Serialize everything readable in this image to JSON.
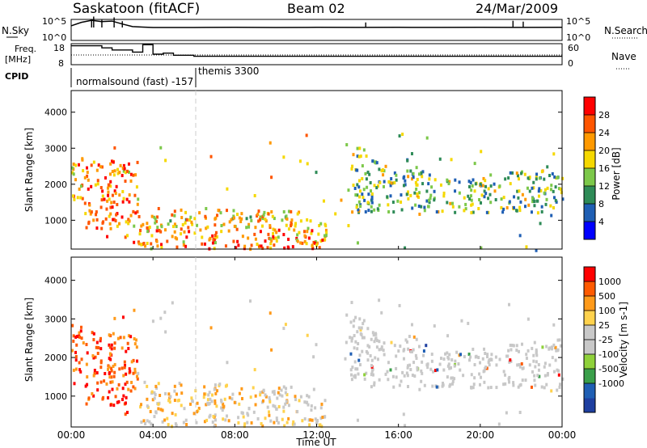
{
  "header": {
    "station": "Saskatoon (fitACF)",
    "beam": "Beam 02",
    "date": "24/Mar/2009"
  },
  "noise_panel": {
    "left_label": "N.Sky",
    "right_label": "N.Search",
    "tick_top": "10^5",
    "tick_bottom": "10^0",
    "log_scale": true
  },
  "freq_panel": {
    "left_label_1": "Freq.",
    "left_label_2": "[MHz]",
    "left_tick_top": "18",
    "left_tick_bottom": "8",
    "right_label": "Nave",
    "right_tick_top": "60",
    "right_tick_bottom": "0"
  },
  "cpid": {
    "label": "CPID",
    "mode_1": "normalsound (fast)",
    "mode_1_id": "-157",
    "mode_2": "themis",
    "mode_2_id": "3300"
  },
  "x_axis": {
    "label": "Time UT",
    "ticks": [
      "00:00",
      "04:00",
      "08:00",
      "12:00",
      "16:00",
      "20:00",
      "00:00"
    ]
  },
  "colors": {
    "power_scale": [
      "#0000ff",
      "#1f5fb4",
      "#2e8b57",
      "#7cc84a",
      "#f5d800",
      "#ff9900",
      "#ff5500",
      "#ff0000"
    ],
    "velocity_scale": [
      "#ff0000",
      "#ff5a00",
      "#ff9a1a",
      "#ffd24d",
      "#c8c8c8",
      "#c8c8c8",
      "#8fd13a",
      "#3a9f4a",
      "#1f5fb4",
      "#1e3fa0"
    ]
  },
  "chart_data": [
    {
      "type": "line",
      "name": "noise",
      "ylabel": "N.Sky",
      "xlabel": "Time UT",
      "y_scale": "log",
      "ylim": [
        1,
        100000
      ],
      "x": [
        "00:00",
        "00:30",
        "01:00",
        "01:30",
        "02:00",
        "02:30",
        "03:00",
        "03:30",
        "04:00",
        "06:00",
        "08:00",
        "10:00",
        "12:00",
        "14:00",
        "16:00",
        "18:00",
        "20:00",
        "22:00",
        "24:00"
      ],
      "series": [
        {
          "values": [
            3000,
            20000,
            60000,
            30000,
            40000,
            8000,
            2000,
            1500,
            1200,
            1200,
            1300,
            1200,
            1300,
            1250,
            1300,
            1250,
            1300,
            1250,
            1300
          ]
        }
      ]
    },
    {
      "type": "line",
      "name": "frequency",
      "ylabel": "Freq. [MHz]",
      "ylim": [
        8,
        18
      ],
      "x": [
        "00:00",
        "01:00",
        "01:30",
        "02:00",
        "03:00",
        "03:30",
        "04:00",
        "04:30",
        "05:00",
        "05:30",
        "06:00",
        "24:00"
      ],
      "series": [
        {
          "values": [
            17,
            17,
            16,
            15,
            14,
            17.5,
            13,
            13.5,
            12.5,
            12.5,
            12,
            12
          ]
        }
      ]
    },
    {
      "type": "heatmap",
      "name": "power",
      "title": "",
      "ylabel": "Slant Range [km]",
      "xlabel": "Time UT",
      "ylim": [
        200,
        4600
      ],
      "yticks": [
        1000,
        2000,
        3000,
        4000
      ],
      "colorbar_label": "Power [dB]",
      "colorbar_ticks": [
        4,
        8,
        12,
        16,
        20,
        24,
        28
      ],
      "colorbar_range": [
        0,
        30
      ]
    },
    {
      "type": "heatmap",
      "name": "velocity",
      "ylabel": "Slant Range [km]",
      "xlabel": "Time UT",
      "ylim": [
        200,
        4600
      ],
      "yticks": [
        1000,
        2000,
        3000,
        4000
      ],
      "colorbar_label": "Velocity [m s-1]",
      "colorbar_ticks": [
        1000,
        500,
        100,
        25,
        -25,
        -100,
        -500,
        -1000
      ]
    }
  ]
}
